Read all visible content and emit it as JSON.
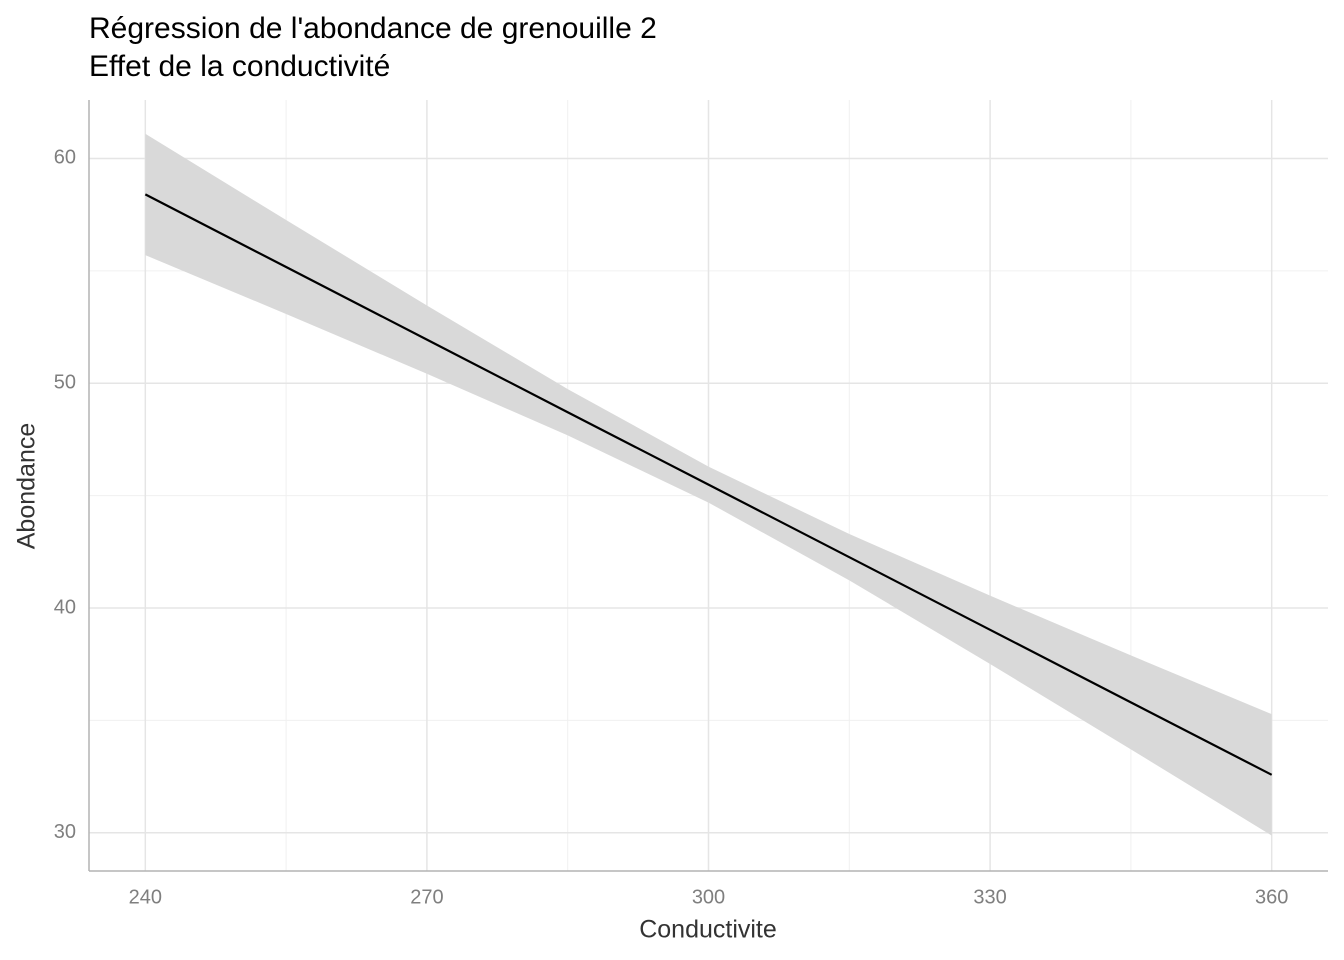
{
  "chart_data": {
    "type": "line",
    "title": "Régression de l'abondance de grenouille 2",
    "subtitle": "Effet de la conductivité",
    "x_label": "Conductivite",
    "y_label": "Abondance",
    "x": [
      240,
      255,
      270,
      285,
      300,
      315,
      330,
      345,
      360
    ],
    "values": [
      58.4,
      55.17,
      51.94,
      48.71,
      45.49,
      42.26,
      39.03,
      35.8,
      32.58
    ],
    "lower": [
      55.7,
      53.08,
      50.42,
      47.68,
      44.69,
      41.23,
      37.51,
      33.71,
      29.88
    ],
    "upper": [
      61.1,
      57.26,
      53.46,
      49.74,
      46.29,
      43.29,
      40.55,
      37.89,
      35.28
    ],
    "color": "#000000",
    "ribbon_color": "#d9d9d9",
    "xlim": [
      234,
      366
    ],
    "ylim": [
      28.3,
      62.6
    ],
    "xticks": [
      240,
      270,
      300,
      330,
      360
    ],
    "yticks": [
      30,
      40,
      50,
      60
    ],
    "grid": true
  }
}
